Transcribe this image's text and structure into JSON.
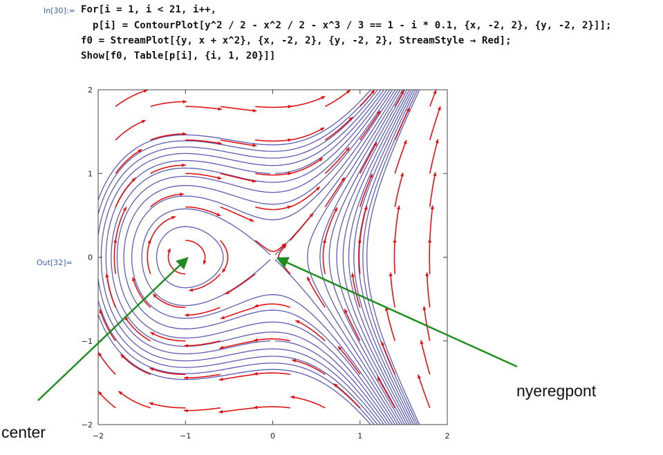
{
  "notebook": {
    "in_label": "In[30]:=",
    "out_label": "Out[32]=",
    "code_lines": [
      "For[i = 1, i < 21, i++,",
      "  p[i] = ContourPlot[y^2 / 2 - x^2 / 2 - x^3 / 3 == 1 - i * 0.1, {x, -2, 2}, {y, -2, 2}]];",
      "f0 = StreamPlot[{y, x + x^2}, {x, -2, 2}, {y, -2, 2}, StreamStyle → Red];",
      "Show[f0, Table[p[i], {i, 1, 20}]]"
    ]
  },
  "annotations": {
    "center_label": "center",
    "saddle_label": "nyeregpont"
  },
  "colors": {
    "stream": "#e01010",
    "contour": "#5a5ab4",
    "arrow": "#1e8c1e",
    "code_var": "#3b7fb8"
  },
  "chart_data": {
    "type": "line",
    "title": "",
    "xlabel": "",
    "ylabel": "",
    "xlim": [
      -2,
      2
    ],
    "ylim": [
      -2,
      2
    ],
    "x_ticks": [
      -2,
      -1,
      0,
      1,
      2
    ],
    "y_ticks": [
      -2,
      -1,
      0,
      1,
      2
    ],
    "x_tick_labels": [
      "−2",
      "−1",
      "0",
      "1",
      "2"
    ],
    "y_tick_labels": [
      "−2",
      "−1",
      "0",
      "1",
      "2"
    ],
    "stream_field": "{y, x + x^2}",
    "contour_function": "y^2/2 - x^2/2 - x^3/3",
    "contour_levels": [
      0.9,
      0.8,
      0.7,
      0.6,
      0.5,
      0.4,
      0.3,
      0.2,
      0.1,
      0.0,
      -0.1,
      -0.2,
      -0.3,
      -0.4,
      -0.5,
      -0.6,
      -0.7,
      -0.8,
      -0.9,
      -1.0
    ],
    "critical_points": [
      {
        "name": "center",
        "x": -1,
        "y": 0
      },
      {
        "name": "saddle",
        "x": 0,
        "y": 0
      }
    ],
    "grid": false
  }
}
